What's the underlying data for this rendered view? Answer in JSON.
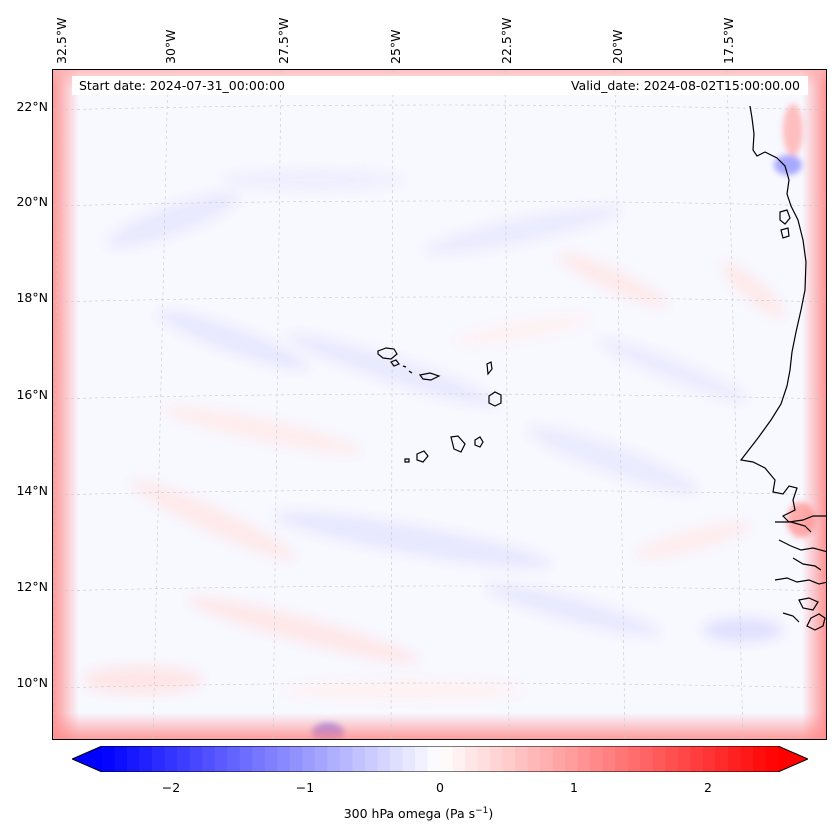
{
  "header": {
    "start_date": "Start date: 2024-07-31_00:00:00",
    "valid_date": "Valid_date: 2024-08-02T15:00:00.00"
  },
  "lon_labels": [
    "32.5°W",
    "30°W",
    "27.5°W",
    "25°W",
    "22.5°W",
    "20°W",
    "17.5°W"
  ],
  "lat_labels": [
    "22°N",
    "20°N",
    "18°N",
    "16°N",
    "14°N",
    "12°N",
    "10°N"
  ],
  "colorbar": {
    "ticks": [
      "−2",
      "−1",
      "0",
      "1",
      "2"
    ],
    "label": "300 hPa omega (Pa s",
    "label_sup": "−1",
    "label_close": ")",
    "range": [
      -2.7,
      2.7
    ],
    "colors": {
      "min": "#0000ff",
      "mid": "#ffffff",
      "max": "#ff0000"
    }
  },
  "map": {
    "field": "300 hPa omega",
    "projection_extent": {
      "lon": [
        -33,
        -15.3
      ],
      "lat": [
        8.8,
        22.8
      ]
    },
    "coastline_color": "#000000",
    "gridlines": "dashed"
  }
}
